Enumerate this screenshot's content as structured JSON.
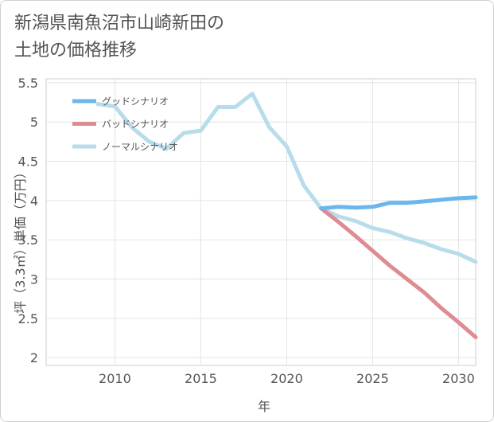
{
  "title_line1": "新潟県南魚沼市山崎新田の",
  "title_line2": "土地の価格推移",
  "chart_data": {
    "type": "line",
    "xlabel": "年",
    "ylabel": "坪（3.3㎡）単価（万円）",
    "xlim": [
      2006,
      2031
    ],
    "ylim": [
      1.9,
      5.55
    ],
    "xticks": [
      2010,
      2015,
      2020,
      2025,
      2030
    ],
    "yticks": [
      2,
      2.5,
      3,
      3.5,
      4,
      4.5,
      5,
      5.5
    ],
    "ytick_labels": [
      "2",
      "2.5",
      "3",
      "3.5",
      "4",
      "4.5",
      "5",
      "5.5"
    ],
    "grid": true,
    "legend_position": "top-left",
    "series": [
      {
        "name": "グッドシナリオ",
        "color": "#6bb6ee",
        "x": [
          2022,
          2023,
          2024,
          2025,
          2026,
          2027,
          2028,
          2029,
          2030,
          2031
        ],
        "y": [
          3.9,
          3.92,
          3.91,
          3.92,
          3.97,
          3.97,
          3.99,
          4.01,
          4.03,
          4.04
        ]
      },
      {
        "name": "バッドシナリオ",
        "color": "#de8c91",
        "x": [
          2022,
          2023,
          2024,
          2025,
          2026,
          2027,
          2028,
          2029,
          2030,
          2031
        ],
        "y": [
          3.9,
          3.73,
          3.55,
          3.36,
          3.17,
          3.0,
          2.83,
          2.63,
          2.45,
          2.26
        ]
      },
      {
        "name": "ノーマルシナリオ",
        "color": "#b9dceb",
        "x": [
          2009,
          2010,
          2011,
          2012,
          2013,
          2014,
          2015,
          2016,
          2017,
          2018,
          2019,
          2020,
          2021,
          2022,
          2023,
          2024,
          2025,
          2026,
          2027,
          2028,
          2029,
          2030,
          2031
        ],
        "y": [
          5.23,
          5.2,
          4.93,
          4.75,
          4.66,
          4.86,
          4.89,
          5.19,
          5.19,
          5.36,
          4.93,
          4.69,
          4.19,
          3.9,
          3.8,
          3.74,
          3.65,
          3.6,
          3.52,
          3.46,
          3.38,
          3.32,
          3.22
        ]
      }
    ]
  }
}
